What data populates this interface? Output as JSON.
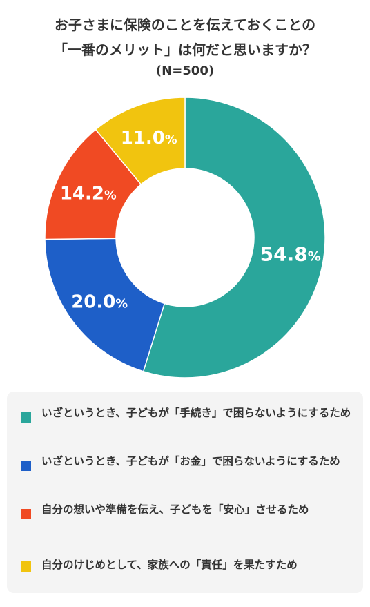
{
  "title_line1": "お子さまに保険のことを伝えておくことの",
  "title_line2": "「一番のメリット」は何だと思いますか？",
  "subtitle": "(N=500)",
  "chart_data": {
    "type": "pie",
    "title": "お子さまに保険のことを伝えておくことの「一番のメリット」は何だと思いますか？",
    "subtitle": "(N=500)",
    "donut": true,
    "unit": "%",
    "categories": [
      "いざというとき、子どもが「手続き」で困らないようにするため",
      "いざというとき、子どもが「お金」で困らないようにするため",
      "自分の想いや準備を伝え、子どもを「安心」させるため",
      "自分のけじめとして、家族への「責任」を果たすため"
    ],
    "values": [
      54.8,
      20.0,
      14.2,
      11.0
    ],
    "value_labels": [
      "54.8",
      "20.0",
      "14.2",
      "11.0"
    ],
    "colors": [
      "#2aa69b",
      "#1e5fc8",
      "#f04a23",
      "#f1c40f"
    ],
    "legend_position": "bottom"
  }
}
